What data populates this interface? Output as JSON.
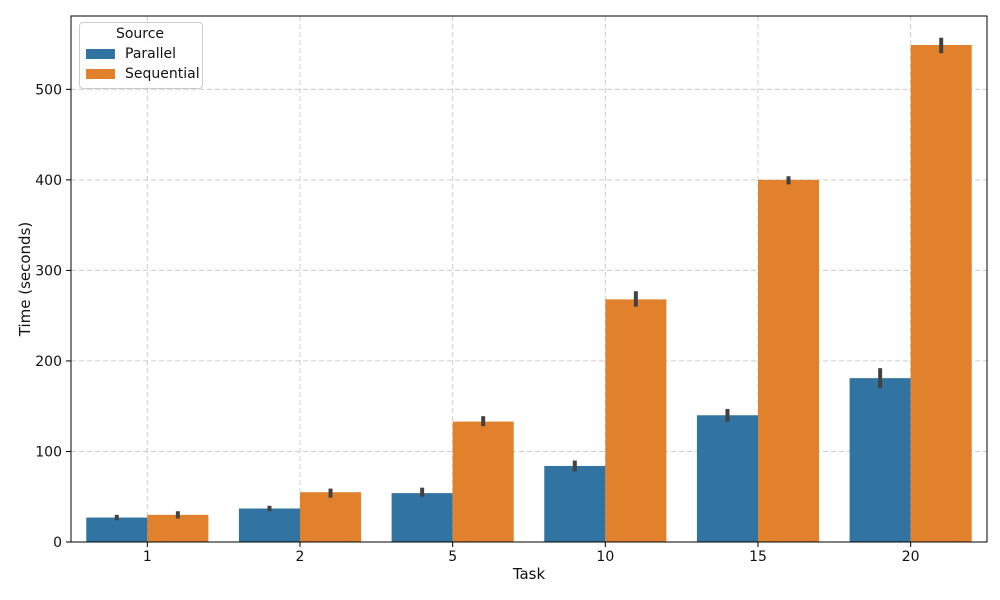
{
  "chart_data": {
    "type": "bar",
    "title": "",
    "xlabel": "Task",
    "ylabel": "Time (seconds)",
    "categories": [
      "1",
      "2",
      "5",
      "10",
      "15",
      "20"
    ],
    "series": [
      {
        "name": "Parallel",
        "color": "#3274a1",
        "values": [
          27,
          37,
          54,
          84,
          140,
          181
        ],
        "err_low": [
          24,
          34,
          50,
          78,
          133,
          170
        ],
        "err_high": [
          30,
          40,
          60,
          90,
          147,
          192
        ]
      },
      {
        "name": "Sequential",
        "color": "#e1812c",
        "values": [
          30,
          55,
          133,
          268,
          400,
          549
        ],
        "err_low": [
          26,
          49,
          128,
          260,
          395,
          540
        ],
        "err_high": [
          34,
          59,
          139,
          277,
          404,
          557
        ]
      }
    ],
    "ylim": [
      0,
      581
    ],
    "yticks": [
      0,
      100,
      200,
      300,
      400,
      500
    ],
    "grid": true,
    "grid_style": "dashed",
    "legend": {
      "title": "Source",
      "position": "upper-left"
    }
  },
  "colors": {
    "errorbar": "#424242",
    "grid": "#cccccc",
    "spine": "#000000",
    "text": "#111111",
    "background": "#ffffff"
  }
}
